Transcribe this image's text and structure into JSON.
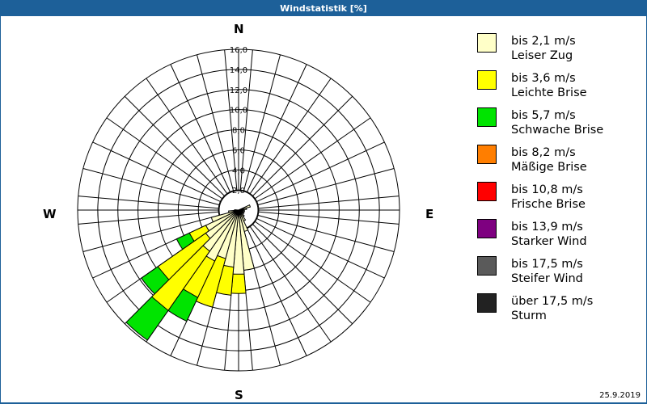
{
  "window": {
    "title": "Windstatistik [%]"
  },
  "compass": {
    "n": "N",
    "e": "E",
    "s": "S",
    "w": "W"
  },
  "date": "25.9.2019",
  "legend": [
    {
      "speed": "bis 2,1 m/s",
      "name": "Leiser Zug",
      "color": "#ffffc8"
    },
    {
      "speed": "bis 3,6 m/s",
      "name": "Leichte Brise",
      "color": "#ffff00"
    },
    {
      "speed": "bis 5,7 m/s",
      "name": "Schwache Brise",
      "color": "#00e400"
    },
    {
      "speed": "bis 8,2 m/s",
      "name": "Mäßige Brise",
      "color": "#ff7e00"
    },
    {
      "speed": "bis 10,8 m/s",
      "name": "Frische Brise",
      "color": "#ff0000"
    },
    {
      "speed": "bis 13,9 m/s",
      "name": "Starker Wind",
      "color": "#7e0080"
    },
    {
      "speed": "bis 17,5 m/s",
      "name": "Steifer Wind",
      "color": "#5a5a5a"
    },
    {
      "speed": "über 17,5 m/s",
      "name": "Sturm",
      "color": "#222222"
    }
  ],
  "chart_data": {
    "type": "wind-rose",
    "title": "Windstatistik [%]",
    "radial_unit": "%",
    "radial_ticks": [
      "2,0",
      "4,0",
      "6,0",
      "8,0",
      "10,0",
      "12,0",
      "14,0",
      "16,0"
    ],
    "radial_max": 16.0,
    "sector_width_deg": 10,
    "series_names": [
      "bis 2,1 m/s",
      "bis 3,6 m/s",
      "bis 5,7 m/s",
      "bis 8,2 m/s",
      "bis 10,8 m/s",
      "bis 13,9 m/s",
      "bis 17,5 m/s",
      "über 17,5 m/s"
    ],
    "sectors": [
      {
        "dir": 70,
        "values": [
          1.2,
          0,
          0,
          0,
          0,
          0,
          0,
          0
        ]
      },
      {
        "dir": 80,
        "values": [
          0.8,
          0,
          0,
          0,
          0,
          0,
          0,
          0
        ]
      },
      {
        "dir": 100,
        "values": [
          0.6,
          0,
          0,
          0,
          0,
          0,
          0,
          0
        ]
      },
      {
        "dir": 120,
        "values": [
          0.6,
          0,
          0,
          0,
          0,
          0,
          0,
          0
        ]
      },
      {
        "dir": 140,
        "values": [
          0.8,
          0,
          0,
          0,
          0,
          0,
          0,
          0
        ]
      },
      {
        "dir": 150,
        "values": [
          1.2,
          0,
          0,
          0,
          0,
          0,
          0,
          0
        ]
      },
      {
        "dir": 160,
        "values": [
          2.2,
          0,
          0,
          0,
          0,
          0,
          0,
          0
        ]
      },
      {
        "dir": 170,
        "values": [
          6.0,
          0,
          0,
          0,
          0,
          0,
          0,
          0
        ]
      },
      {
        "dir": 180,
        "values": [
          6.4,
          1.9,
          0,
          0,
          0,
          0,
          0,
          0
        ]
      },
      {
        "dir": 190,
        "values": [
          5.7,
          2.8,
          0,
          0,
          0,
          0,
          0,
          0
        ]
      },
      {
        "dir": 200,
        "values": [
          5.0,
          5.0,
          0,
          0,
          0,
          0,
          0,
          0
        ]
      },
      {
        "dir": 210,
        "values": [
          5.6,
          4.0,
          2.6,
          0,
          0,
          0,
          0,
          0
        ]
      },
      {
        "dir": 220,
        "values": [
          5.0,
          7.2,
          3.6,
          0,
          0,
          0,
          0,
          0
        ]
      },
      {
        "dir": 230,
        "values": [
          4.0,
          5.8,
          2.0,
          0,
          0,
          0,
          0,
          0
        ]
      },
      {
        "dir": 240,
        "values": [
          3.6,
          1.8,
          1.4,
          0,
          0,
          0,
          0,
          0
        ]
      },
      {
        "dir": 250,
        "values": [
          2.8,
          0,
          0,
          0,
          0,
          0,
          0,
          0
        ]
      },
      {
        "dir": 260,
        "values": [
          1.0,
          0,
          0,
          0,
          0,
          0,
          0,
          0
        ]
      },
      {
        "dir": 270,
        "values": [
          0.4,
          0,
          0,
          0,
          0,
          0,
          0,
          0
        ]
      }
    ]
  }
}
